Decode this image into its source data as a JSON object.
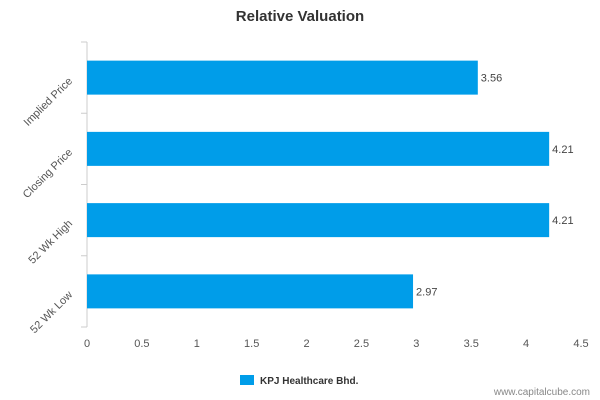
{
  "chart_data": {
    "type": "bar",
    "orientation": "horizontal",
    "title": "Relative Valuation",
    "categories": [
      "Implied Price",
      "Closing Price",
      "52 Wk High",
      "52 Wk Low"
    ],
    "series": [
      {
        "name": "KPJ Healthcare Bhd.",
        "values": [
          3.56,
          4.21,
          4.21,
          2.97
        ],
        "color": "#009de9"
      }
    ],
    "data_labels": [
      "3.56",
      "4.21",
      "4.21",
      "2.97"
    ],
    "xlim": [
      0,
      4.5
    ],
    "x_ticks": [
      0,
      0.5,
      1,
      1.5,
      2,
      2.5,
      3,
      3.5,
      4,
      4.5
    ],
    "x_tick_labels": [
      "0",
      "0.5",
      "1",
      "1.5",
      "2",
      "2.5",
      "3",
      "3.5",
      "4",
      "4.5"
    ],
    "grid": false,
    "legend_position": "bottom-center"
  },
  "watermark": "www.capitalcube.com"
}
